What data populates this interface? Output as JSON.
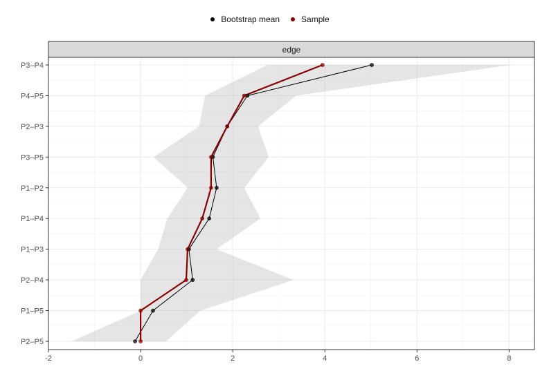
{
  "chart_data": {
    "type": "line",
    "strip_label": "edge",
    "categories": [
      "P3–P4",
      "P4–P5",
      "P2–P3",
      "P3–P5",
      "P1–P2",
      "P1–P4",
      "P1–P3",
      "P2–P4",
      "P1–P5",
      "P2–P5"
    ],
    "xlim": [
      -2,
      8.55
    ],
    "x_ticks": [
      -2,
      0,
      2,
      4,
      6,
      8
    ],
    "x_tick_labels": [
      "-2",
      "0",
      "2",
      "4",
      "6",
      "8"
    ],
    "grid": true,
    "legend_position": "top",
    "series": [
      {
        "name": "Bootstrap mean",
        "color": "#000000",
        "values": [
          5.02,
          2.32,
          1.88,
          1.57,
          1.65,
          1.49,
          1.05,
          1.13,
          0.27,
          -0.12
        ]
      },
      {
        "name": "Sample",
        "color": "#8b0000",
        "values": [
          3.95,
          2.25,
          1.88,
          1.53,
          1.53,
          1.34,
          1.02,
          0.99,
          0.0,
          0.0
        ]
      }
    ],
    "interval": {
      "lower": [
        2.75,
        1.4,
        1.27,
        0.28,
        1.02,
        0.58,
        0.38,
        0.0,
        0.0,
        -1.5
      ],
      "upper": [
        8.03,
        3.38,
        2.55,
        2.78,
        2.25,
        2.6,
        1.65,
        3.32,
        1.3,
        0.55
      ]
    }
  }
}
